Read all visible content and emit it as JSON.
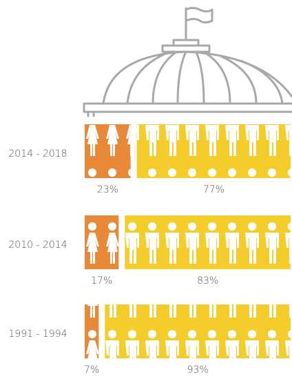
{
  "chart_data": {
    "type": "stacked-bar-horizontal",
    "categories": [
      "2014 - 2018",
      "2010 - 2014",
      "1991 - 1994"
    ],
    "series": [
      {
        "color": "#e8893a",
        "values": [
          23,
          17,
          7
        ],
        "value_labels": [
          "23%",
          "17%",
          "7%"
        ]
      },
      {
        "color": "#f4cd2d",
        "values": [
          77,
          83,
          93
        ],
        "value_labels": [
          "77%",
          "83%",
          "93%"
        ]
      }
    ]
  }
}
